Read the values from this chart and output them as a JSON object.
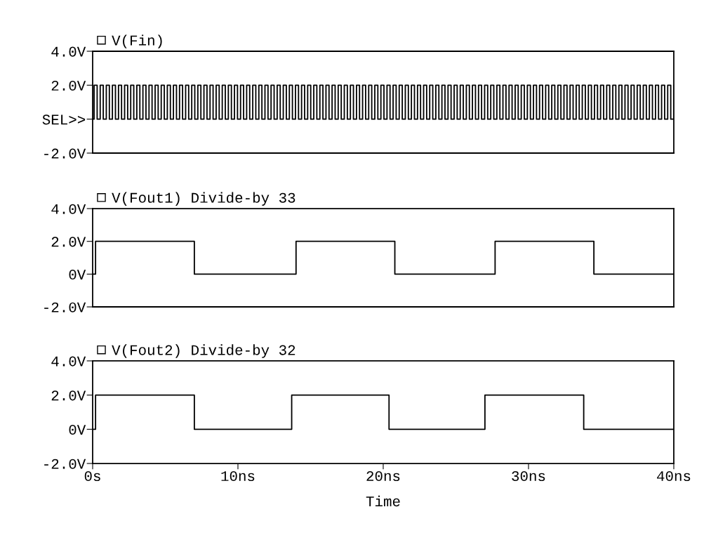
{
  "chart_data": [
    {
      "type": "step",
      "legend": "top left",
      "xlim": [
        0,
        40
      ],
      "ylim": [
        -2,
        4
      ],
      "tick_labels": "y",
      "yticks": [
        {
          "value": 4,
          "label": "4.0V"
        },
        {
          "value": 2,
          "label": "2.0V"
        },
        {
          "value": 0,
          "label": "SEL>>"
        },
        {
          "value": -2,
          "label": "-2.0V"
        }
      ],
      "series": [
        {
          "name": "V(Fin)",
          "color": "#000000",
          "x": [
            0,
            0.1,
            0.31,
            0.52,
            0.73,
            0.94,
            1.15,
            1.36,
            1.57,
            1.78,
            1.99,
            2.2,
            2.41,
            2.62,
            2.83,
            3.04,
            3.25,
            3.46,
            3.67,
            3.88,
            4.09,
            4.3,
            4.51,
            4.72,
            4.93,
            5.14,
            5.35,
            5.56,
            5.77,
            5.98,
            6.19,
            6.4,
            6.61,
            6.82,
            7.03,
            7.24,
            7.45,
            7.66,
            7.87,
            8.08,
            8.29,
            8.5,
            8.71,
            8.92,
            9.13,
            9.34,
            9.55,
            9.76,
            9.97,
            10.18,
            10.39,
            10.6,
            10.81,
            11.02,
            11.23,
            11.44,
            11.65,
            11.86,
            12.07,
            12.28,
            12.49,
            12.7,
            12.91,
            13.12,
            13.33,
            13.54,
            13.75,
            13.96,
            14.17,
            14.38,
            14.59,
            14.8,
            15.01,
            15.22,
            15.43,
            15.64,
            15.85,
            16.06,
            16.27,
            16.48,
            16.69,
            16.9,
            17.11,
            17.32,
            17.53,
            17.74,
            17.95,
            18.16,
            18.37,
            18.58,
            18.79,
            19.0,
            19.21,
            19.42,
            19.63,
            19.84,
            20.05,
            20.26,
            20.47,
            20.68,
            20.89,
            21.1,
            21.31,
            21.52,
            21.73,
            21.94,
            22.15,
            22.36,
            22.57,
            22.78,
            22.99,
            23.2,
            23.41,
            23.62,
            23.83,
            24.04,
            24.25,
            24.46,
            24.67,
            24.88,
            25.09,
            25.3,
            25.51,
            25.72,
            25.93,
            26.14,
            26.35,
            26.56,
            26.77,
            26.98,
            27.19,
            27.4,
            27.61,
            27.82,
            28.03,
            28.24,
            28.45,
            28.66,
            28.87,
            29.08,
            29.29,
            29.5,
            29.71,
            29.92,
            30.13,
            30.34,
            30.55,
            30.76,
            30.97,
            31.18,
            31.39,
            31.6,
            31.81,
            32.02,
            32.23,
            32.44,
            32.65,
            32.86,
            33.07,
            33.28,
            33.49,
            33.7,
            33.91,
            34.12,
            34.33,
            34.54,
            34.75,
            34.96,
            35.17,
            35.38,
            35.59,
            35.8,
            36.01,
            36.22,
            36.43,
            36.64,
            36.85,
            37.06,
            37.27,
            37.48,
            37.69,
            37.9,
            38.11,
            38.32,
            38.53,
            38.74,
            38.95,
            39.16,
            39.37,
            39.58,
            39.79,
            40.0
          ],
          "values": [
            0,
            2,
            0,
            2,
            0,
            2,
            0,
            2,
            0,
            2,
            0,
            2,
            0,
            2,
            0,
            2,
            0,
            2,
            0,
            2,
            0,
            2,
            0,
            2,
            0,
            2,
            0,
            2,
            0,
            2,
            0,
            2,
            0,
            2,
            0,
            2,
            0,
            2,
            0,
            2,
            0,
            2,
            0,
            2,
            0,
            2,
            0,
            2,
            0,
            2,
            0,
            2,
            0,
            2,
            0,
            2,
            0,
            2,
            0,
            2,
            0,
            2,
            0,
            2,
            0,
            2,
            0,
            2,
            0,
            2,
            0,
            2,
            0,
            2,
            0,
            2,
            0,
            2,
            0,
            2,
            0,
            2,
            0,
            2,
            0,
            2,
            0,
            2,
            0,
            2,
            0,
            2,
            0,
            2,
            0,
            2,
            0,
            2,
            0,
            2,
            0,
            2,
            0,
            2,
            0,
            2,
            0,
            2,
            0,
            2,
            0,
            2,
            0,
            2,
            0,
            2,
            0,
            2,
            0,
            2,
            0,
            2,
            0,
            2,
            0,
            2,
            0,
            2,
            0,
            2,
            0,
            2,
            0,
            2,
            0,
            2,
            0,
            2,
            0,
            2,
            0,
            2,
            0,
            2,
            0,
            2,
            0,
            2,
            0,
            2,
            0,
            2,
            0,
            2,
            0,
            2,
            0,
            2,
            0,
            2,
            0,
            2,
            0,
            2,
            0,
            2,
            0,
            2,
            0,
            2,
            0,
            2,
            0,
            2,
            0,
            2,
            0,
            2,
            0,
            2,
            0,
            2,
            0,
            2,
            0,
            2,
            0,
            2,
            0,
            2,
            0,
            2
          ]
        }
      ]
    },
    {
      "type": "step",
      "legend": "top left",
      "xlim": [
        0,
        40
      ],
      "ylim": [
        -2,
        4
      ],
      "tick_labels": "y",
      "yticks": [
        {
          "value": 4,
          "label": "4.0V"
        },
        {
          "value": 2,
          "label": "2.0V"
        },
        {
          "value": 0,
          "label": "0V"
        },
        {
          "value": -2,
          "label": "-2.0V"
        }
      ],
      "series": [
        {
          "name": "V(Fout1) Divide-by 33",
          "color": "#000000",
          "x": [
            0,
            0.2,
            7.0,
            14.0,
            20.8,
            27.7,
            34.5,
            40
          ],
          "values": [
            0,
            2,
            0,
            2,
            0,
            2,
            0,
            0
          ]
        }
      ]
    },
    {
      "type": "step",
      "legend": "top left",
      "xlim": [
        0,
        40
      ],
      "ylim": [
        -2,
        4
      ],
      "xlabel": "Time",
      "xticks": [
        {
          "value": 0,
          "label": "0s"
        },
        {
          "value": 10,
          "label": "10ns"
        },
        {
          "value": 20,
          "label": "20ns"
        },
        {
          "value": 30,
          "label": "30ns"
        },
        {
          "value": 40,
          "label": "40ns"
        }
      ],
      "yticks": [
        {
          "value": 4,
          "label": "4.0V"
        },
        {
          "value": 2,
          "label": "2.0V"
        },
        {
          "value": 0,
          "label": "0V"
        },
        {
          "value": -2,
          "label": "-2.0V"
        }
      ],
      "series": [
        {
          "name": "V(Fout2) Divide-by 32",
          "color": "#000000",
          "x": [
            0,
            0.2,
            7.0,
            13.7,
            20.4,
            27.0,
            33.8,
            40
          ],
          "values": [
            0,
            2,
            0,
            2,
            0,
            2,
            0,
            0
          ]
        }
      ]
    }
  ]
}
